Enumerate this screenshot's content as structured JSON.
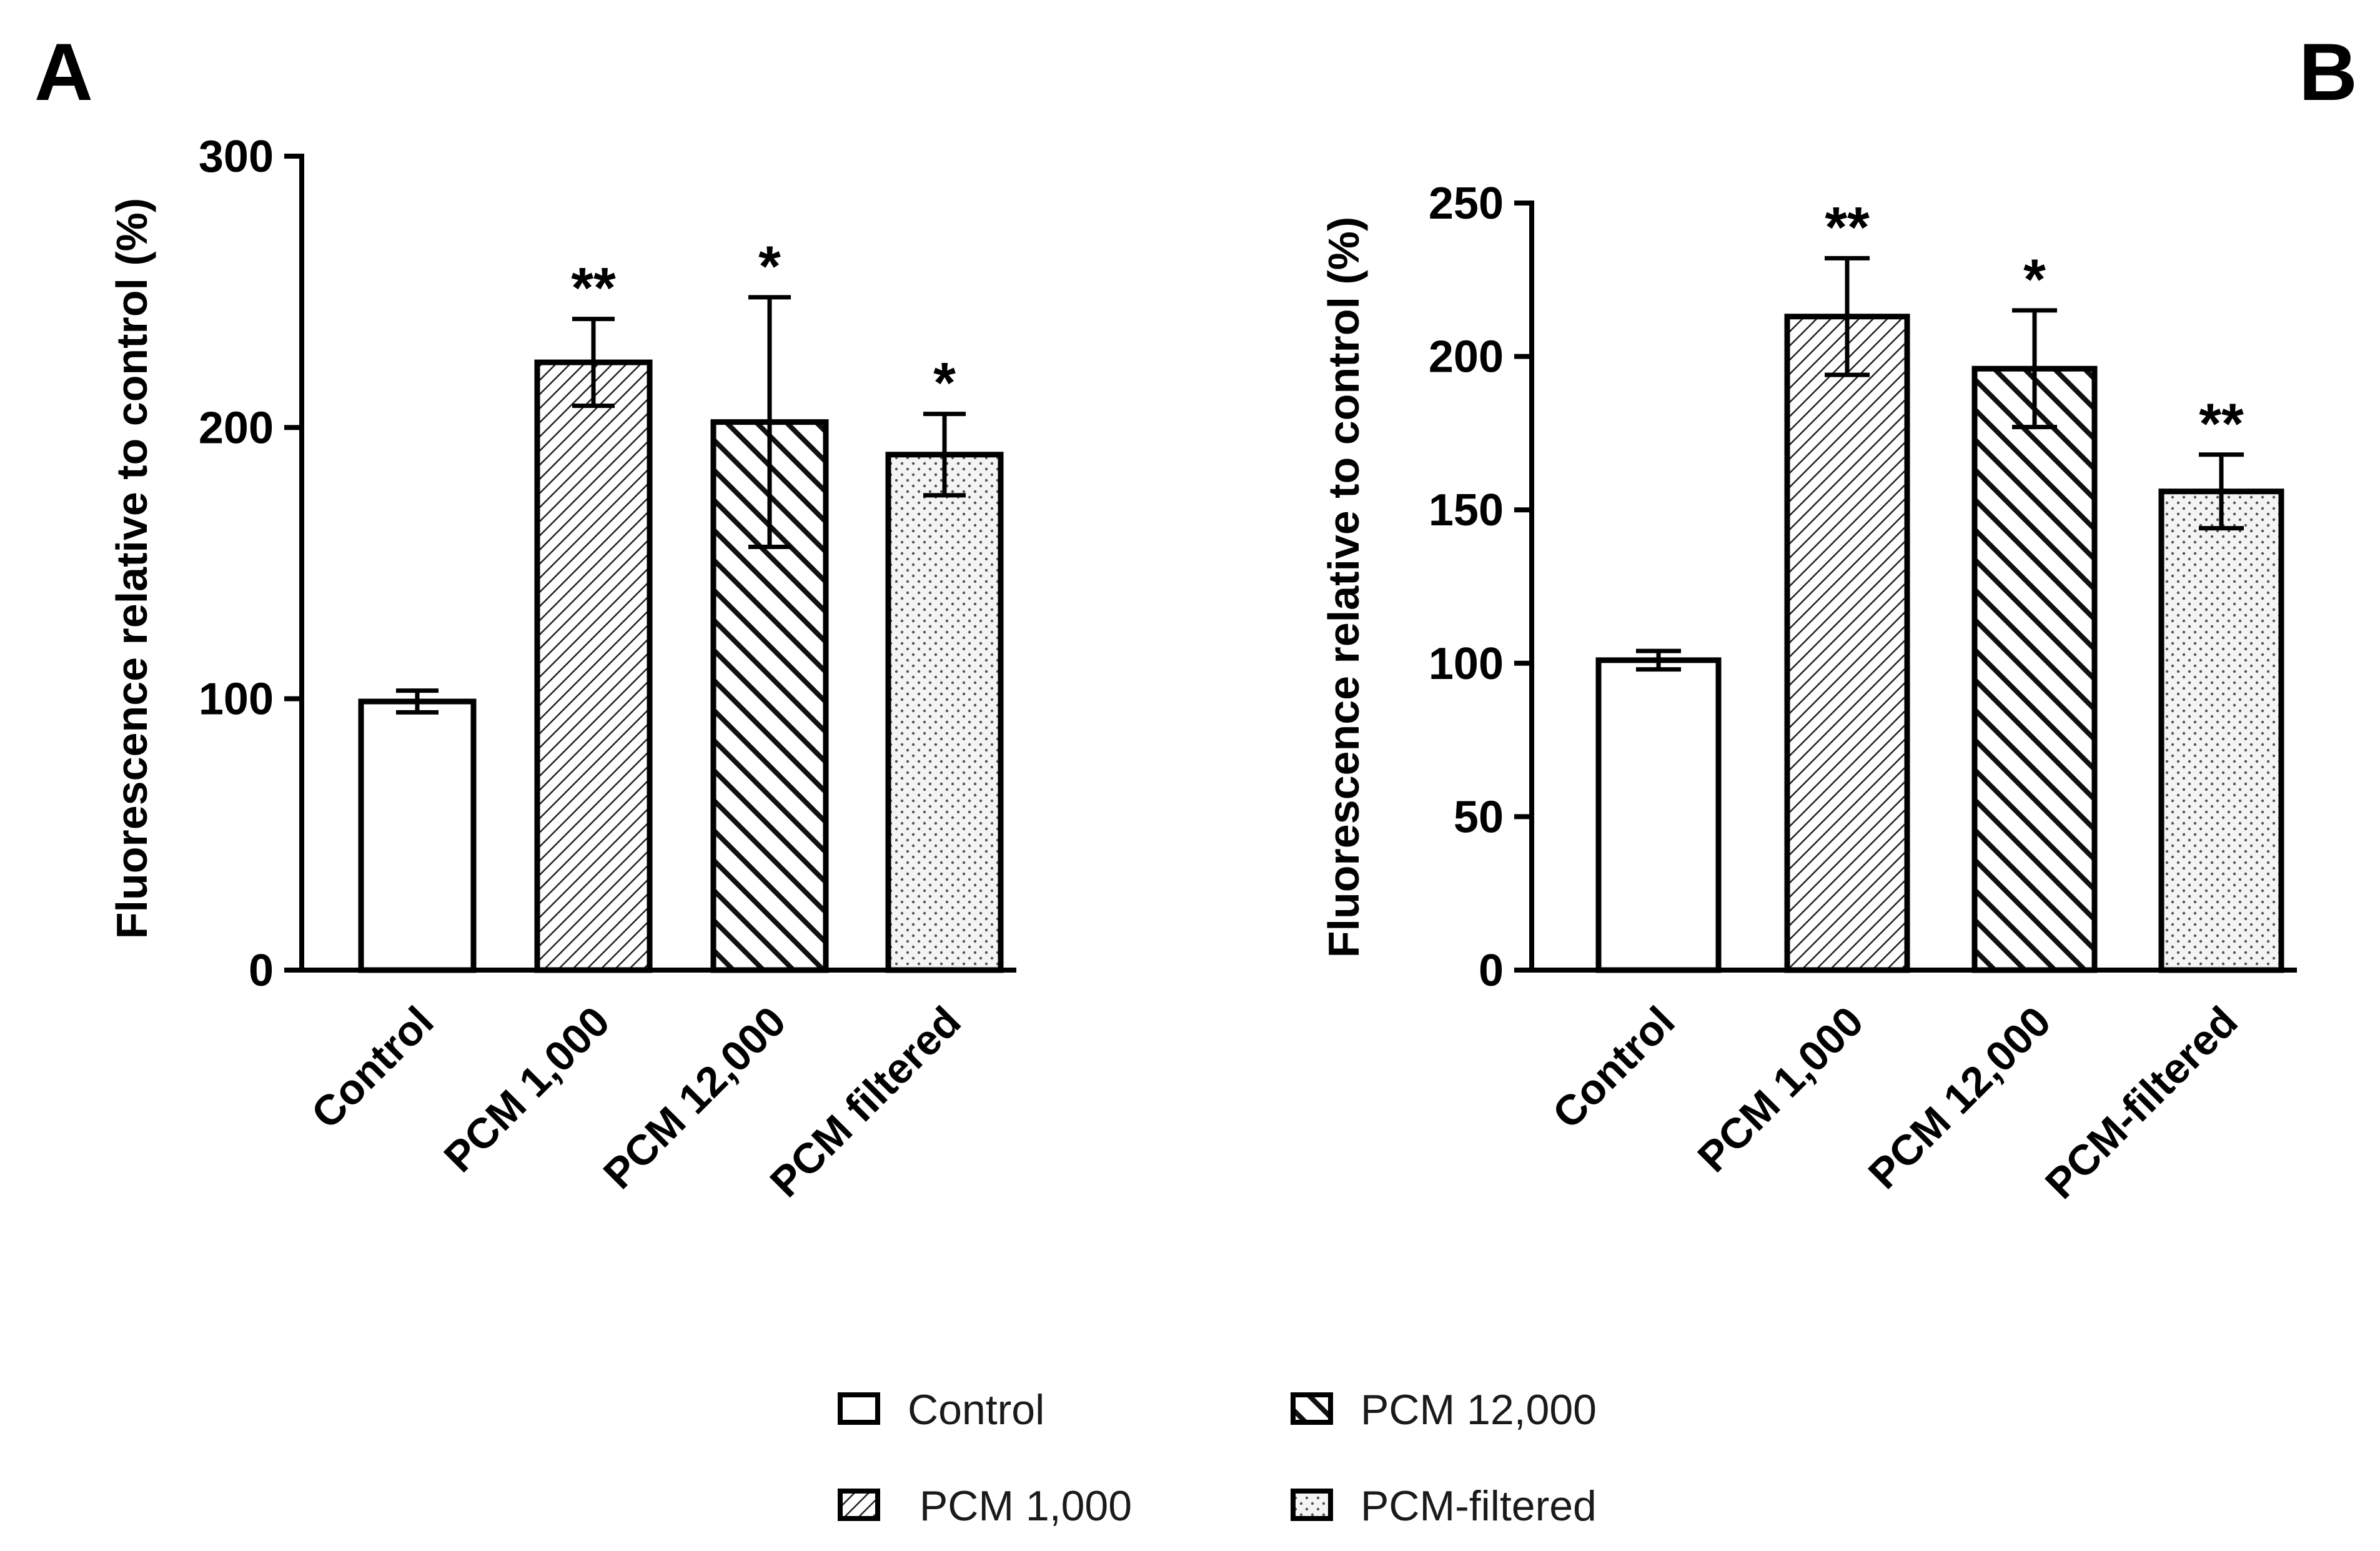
{
  "legend": {
    "items": [
      {
        "label": "Control",
        "pattern": "control"
      },
      {
        "label": " PCM 1,000",
        "pattern": "pcm1000"
      },
      {
        "label": "PCM 12,000",
        "pattern": "pcm12000"
      },
      {
        "label": "PCM-filtered",
        "pattern": "filtered"
      }
    ]
  },
  "chart_data": [
    {
      "panel": "A",
      "type": "bar",
      "ylabel": "Fluorescence relative to control (%)",
      "ylim": [
        0,
        300
      ],
      "yticks": [
        0,
        100,
        200,
        300
      ],
      "ytick_labels": [
        "0",
        "100",
        "200",
        "300"
      ],
      "categories": [
        "Control",
        "PCM 1,000",
        "PCM 12,000",
        "PCM filtered"
      ],
      "patterns": [
        "control",
        "pcm1000",
        "pcm12000",
        "filtered"
      ],
      "values": [
        99,
        224,
        202,
        190
      ],
      "errors": [
        4,
        16,
        46,
        15
      ],
      "significance": [
        "",
        "**",
        "*",
        "*"
      ]
    },
    {
      "panel": "B",
      "type": "bar",
      "ylabel": "Fluorescence relative to control (%)",
      "ylim": [
        0,
        250
      ],
      "yticks": [
        0,
        50,
        100,
        150,
        200,
        250
      ],
      "ytick_labels": [
        "0",
        "50",
        "100",
        "150",
        "200",
        "250"
      ],
      "categories": [
        "Control",
        "PCM 1,000",
        "PCM 12,000",
        "PCM-filtered"
      ],
      "patterns": [
        "control",
        "pcm1000",
        "pcm12000",
        "filtered"
      ],
      "values": [
        101,
        213,
        196,
        156
      ],
      "errors": [
        3,
        19,
        19,
        12
      ],
      "significance": [
        "",
        "**",
        "*",
        "**"
      ]
    }
  ]
}
